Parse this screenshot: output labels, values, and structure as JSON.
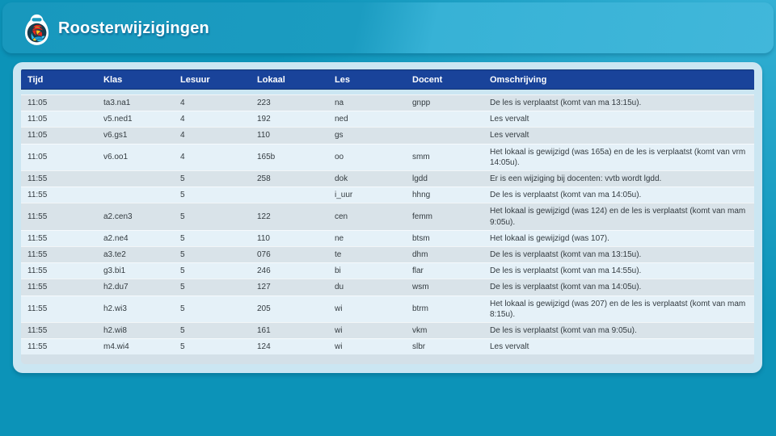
{
  "header": {
    "title": "Roosterwijzigingen",
    "logo": "rooster-keyfob-logo"
  },
  "colors": {
    "page_background_left": "#0c93b9",
    "page_background_right": "#2db1d5",
    "banner_background": "#1b9cc1",
    "table_header_background": "#19439a",
    "table_header_text": "#ffffff",
    "row_odd_background": "#d9e3e9",
    "row_even_background": "#e5f1f8",
    "panel_background": "#cbe6f2",
    "row_text": "#333b40"
  },
  "table": {
    "columns": [
      "Tijd",
      "Klas",
      "Lesuur",
      "Lokaal",
      "Les",
      "Docent",
      "Omschrijving"
    ],
    "rows": [
      [
        "11:05",
        "ta3.na1",
        "4",
        "223",
        "na",
        "gnpp",
        "De les is verplaatst (komt van ma 13:15u)."
      ],
      [
        "11:05",
        "v5.ned1",
        "4",
        "192",
        "ned",
        "",
        "Les vervalt"
      ],
      [
        "11:05",
        "v6.gs1",
        "4",
        "110",
        "gs",
        "",
        "Les vervalt"
      ],
      [
        "11:05",
        "v6.oo1",
        "4",
        "165b",
        "oo",
        "smm",
        "Het lokaal is gewijzigd (was 165a) en de les is verplaatst (komt van vrm 14:05u)."
      ],
      [
        "11:55",
        "",
        "5",
        "258",
        "dok",
        "lgdd",
        "Er is een wijziging bij docenten: vvtb wordt lgdd."
      ],
      [
        "11:55",
        "",
        "5",
        "",
        "i_uur",
        "hhng",
        "De les is verplaatst (komt van ma 14:05u)."
      ],
      [
        "11:55",
        "a2.cen3",
        "5",
        "122",
        "cen",
        "femm",
        "Het lokaal is gewijzigd (was 124) en de les is verplaatst (komt van mam 9:05u)."
      ],
      [
        "11:55",
        "a2.ne4",
        "5",
        "110",
        "ne",
        "btsm",
        "Het lokaal is gewijzigd (was 107)."
      ],
      [
        "11:55",
        "a3.te2",
        "5",
        "076",
        "te",
        "dhm",
        "De les is verplaatst (komt van ma 13:15u)."
      ],
      [
        "11:55",
        "g3.bi1",
        "5",
        "246",
        "bi",
        "flar",
        "De les is verplaatst (komt van ma 14:55u)."
      ],
      [
        "11:55",
        "h2.du7",
        "5",
        "127",
        "du",
        "wsm",
        "De les is verplaatst (komt van ma 14:05u)."
      ],
      [
        "11:55",
        "h2.wi3",
        "5",
        "205",
        "wi",
        "btrm",
        "Het lokaal is gewijzigd (was 207) en de les is verplaatst (komt van mam 8:15u)."
      ],
      [
        "11:55",
        "h2.wi8",
        "5",
        "161",
        "wi",
        "vkm",
        "De les is verplaatst (komt van ma 9:05u)."
      ],
      [
        "11:55",
        "m4.wi4",
        "5",
        "124",
        "wi",
        "slbr",
        "Les vervalt"
      ]
    ]
  }
}
